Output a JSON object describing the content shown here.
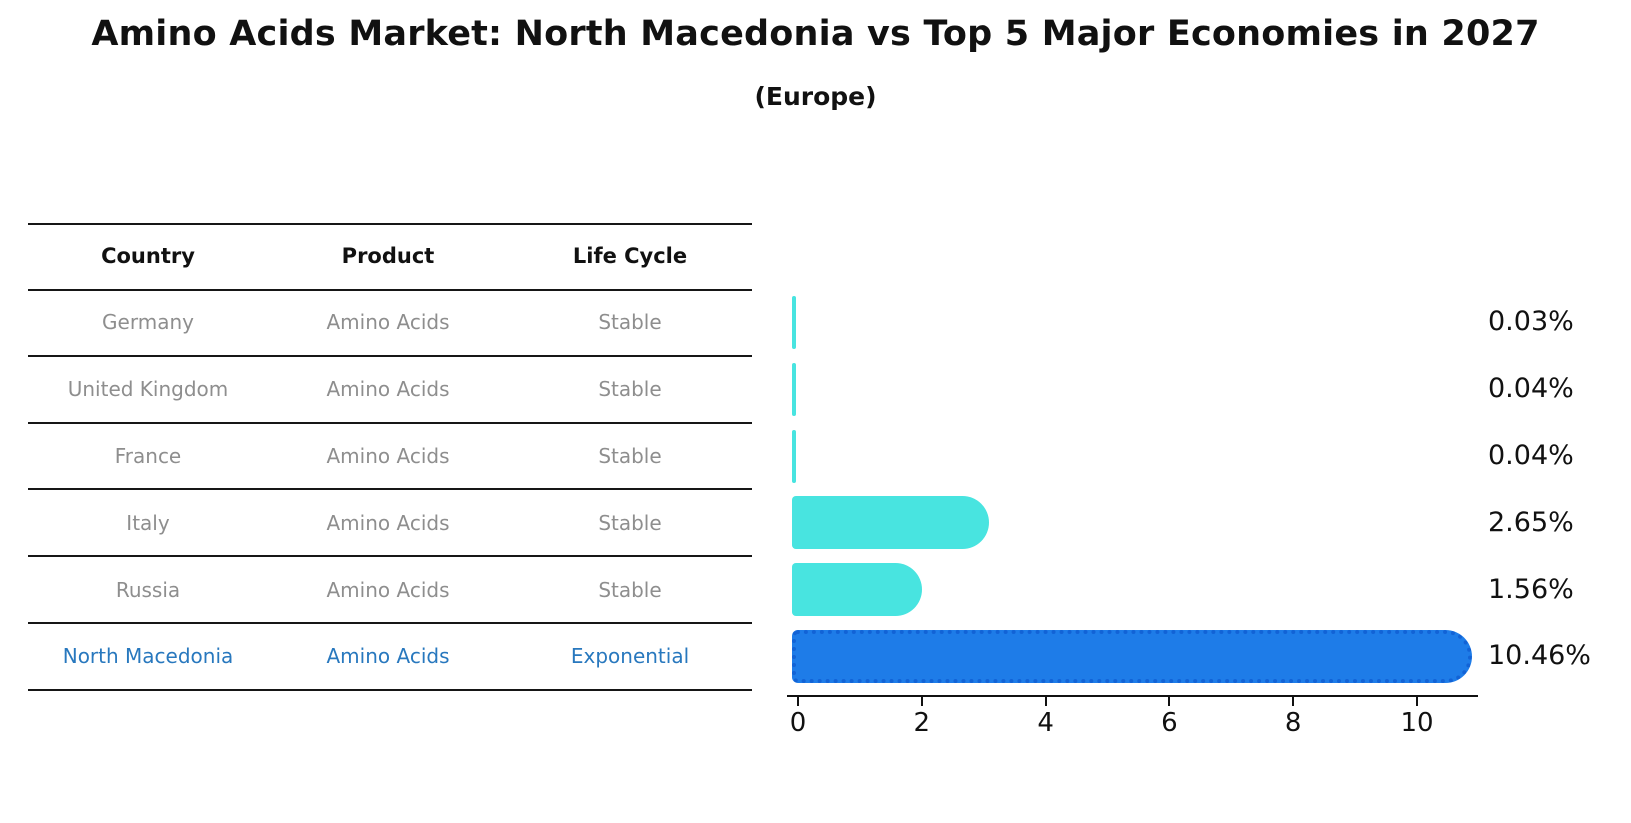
{
  "title": "Amino Acids Market: North Macedonia vs Top 5 Major Economies in 2027",
  "subtitle": "(Europe)",
  "table": {
    "columns": [
      "Country",
      "Product",
      "Life Cycle"
    ],
    "rows": [
      {
        "country": "Germany",
        "product": "Amino Acids",
        "life_cycle": "Stable",
        "highlight": false
      },
      {
        "country": "United Kingdom",
        "product": "Amino Acids",
        "life_cycle": "Stable",
        "highlight": false
      },
      {
        "country": "France",
        "product": "Amino Acids",
        "life_cycle": "Stable",
        "highlight": false
      },
      {
        "country": "Italy",
        "product": "Amino Acids",
        "life_cycle": "Stable",
        "highlight": false
      },
      {
        "country": "Russia",
        "product": "Amino Acids",
        "life_cycle": "Stable",
        "highlight": false
      },
      {
        "country": "North Macedonia",
        "product": "Amino Acids",
        "life_cycle": "Exponential",
        "highlight": true
      }
    ]
  },
  "chart_data": {
    "type": "bar",
    "orientation": "horizontal",
    "title": "Amino Acids Market: North Macedonia vs Top 5 Major Economies in 2027",
    "subtitle": "(Europe)",
    "categories": [
      "Germany",
      "United Kingdom",
      "France",
      "Italy",
      "Russia",
      "North Macedonia"
    ],
    "values": [
      0.03,
      0.04,
      0.04,
      2.65,
      1.56,
      10.46
    ],
    "value_labels": [
      "0.03%",
      "0.04%",
      "0.04%",
      "2.65%",
      "1.56%",
      "10.46%"
    ],
    "unit": "%",
    "xlim": [
      0,
      11
    ],
    "x_ticks": [
      0,
      2,
      4,
      6,
      8,
      10
    ],
    "highlight_index": 5,
    "grid": false,
    "legend": false
  },
  "colors": {
    "bar": "#48E4E0",
    "highlight_bar": "#1E7CE8",
    "highlight_bar_edge": "#1263D6",
    "highlight_text": "#2878be",
    "body_text": "#8e8e8e",
    "heading_text": "#111111"
  }
}
